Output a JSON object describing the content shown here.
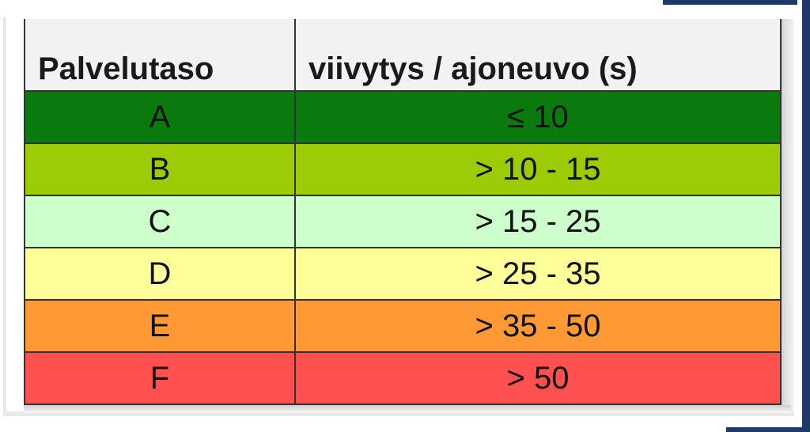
{
  "table": {
    "headers": [
      "Palvelutaso",
      "viivytys / ajoneuvo (s)"
    ],
    "rows": [
      {
        "level": "A",
        "delay": "≤ 10",
        "color": "#0a7a0e"
      },
      {
        "level": "B",
        "delay": "> 10 - 15",
        "color": "#9ccc05"
      },
      {
        "level": "C",
        "delay": "> 15 - 25",
        "color": "#ccffcc"
      },
      {
        "level": "D",
        "delay": "> 25 - 35",
        "color": "#ffff99"
      },
      {
        "level": "E",
        "delay": "> 35 - 50",
        "color": "#ff9933"
      },
      {
        "level": "F",
        "delay": "> 50",
        "color": "#ff5050"
      }
    ]
  }
}
